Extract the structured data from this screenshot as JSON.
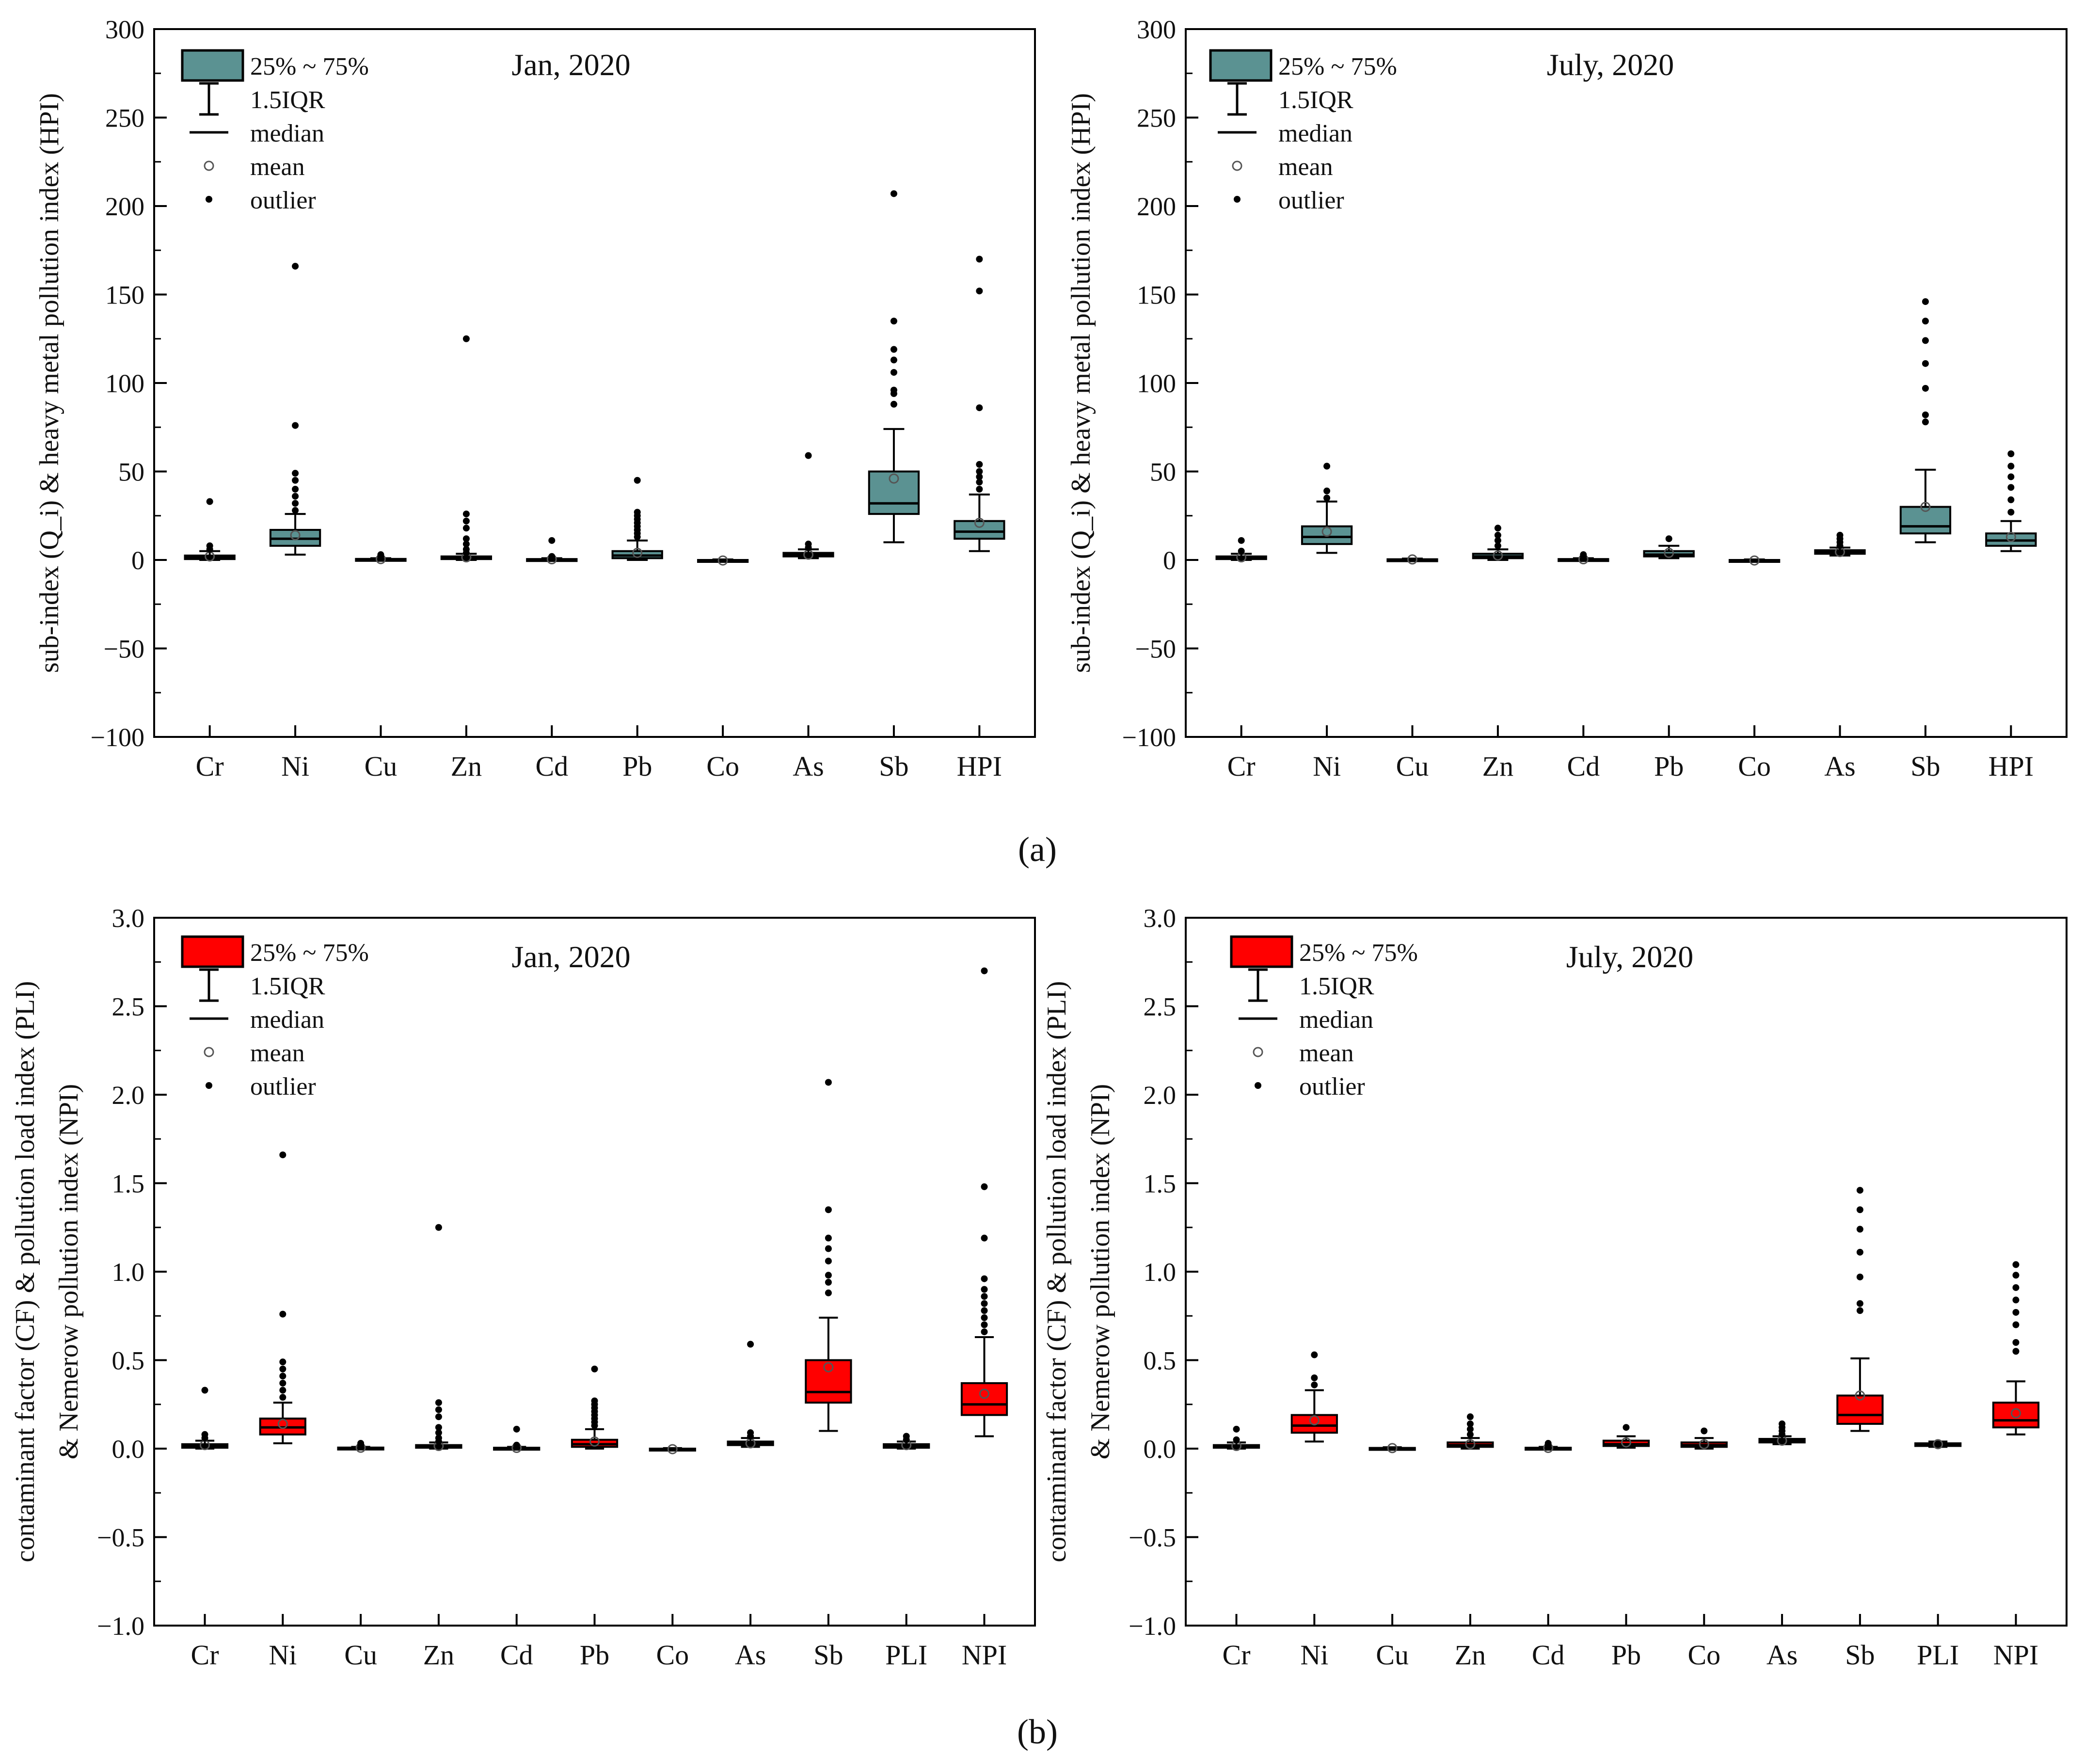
{
  "figure": {
    "panel_labels": [
      "(a)",
      "(b)"
    ]
  },
  "styles": {
    "teal": "#5b9292",
    "red": "#ff0000",
    "axis": "#000000"
  },
  "chart_data": [
    {
      "type": "box",
      "title": "Jan, 2020",
      "ylabel": "sub-index (Q_i) & heavy metal pollution index (HPI)",
      "ylim": [
        -100,
        300
      ],
      "yticks": [
        -100,
        -50,
        0,
        50,
        100,
        150,
        200,
        250,
        300
      ],
      "ytick_labels": [
        "−100",
        "−50",
        "0",
        "50",
        "100",
        "150",
        "200",
        "250",
        "300"
      ],
      "categories": [
        "Cr",
        "Ni",
        "Cu",
        "Zn",
        "Cd",
        "Pb",
        "Co",
        "As",
        "Sb",
        "HPI"
      ],
      "legend": [
        "25% ~ 75%",
        "1.5IQR",
        "median",
        "mean",
        "outlier"
      ],
      "box_color_key": "teal",
      "boxes": [
        {
          "q1": 0.5,
          "median": 1.5,
          "q3": 2.5,
          "wlo": 0,
          "whi": 5,
          "mean": 2,
          "outliers": [
            6,
            8,
            33
          ]
        },
        {
          "q1": 8,
          "median": 12,
          "q3": 17,
          "wlo": 3,
          "whi": 26,
          "mean": 14,
          "outliers": [
            28,
            32,
            36,
            40,
            45,
            49,
            76,
            166
          ]
        },
        {
          "q1": 0,
          "median": 0.3,
          "q3": 0.6,
          "wlo": 0,
          "whi": 1,
          "mean": 0.5,
          "outliers": [
            2,
            3
          ]
        },
        {
          "q1": 0.5,
          "median": 1,
          "q3": 2,
          "wlo": 0,
          "whi": 3.5,
          "mean": 1.5,
          "outliers": [
            4,
            6,
            9,
            12,
            18,
            22,
            26,
            125
          ]
        },
        {
          "q1": 0,
          "median": 0.3,
          "q3": 0.5,
          "wlo": 0,
          "whi": 1,
          "mean": 0.4,
          "outliers": [
            2,
            11
          ]
        },
        {
          "q1": 1,
          "median": 2.5,
          "q3": 5,
          "wlo": 0,
          "whi": 11,
          "mean": 4,
          "outliers": [
            13,
            15,
            17,
            19,
            21,
            23,
            25,
            27,
            45
          ]
        },
        {
          "q1": -0.5,
          "median": -0.2,
          "q3": 0,
          "wlo": -0.8,
          "whi": 0.3,
          "mean": -0.3,
          "outliers": []
        },
        {
          "q1": 2,
          "median": 3,
          "q3": 4,
          "wlo": 1,
          "whi": 6,
          "mean": 3,
          "outliers": [
            7,
            9,
            59
          ]
        },
        {
          "q1": 26,
          "median": 32,
          "q3": 50,
          "wlo": 10,
          "whi": 74,
          "mean": 46,
          "outliers": [
            88,
            94,
            96,
            106,
            113,
            119,
            135,
            207
          ]
        },
        {
          "q1": 12,
          "median": 16,
          "q3": 22,
          "wlo": 5,
          "whi": 37,
          "mean": 21,
          "outliers": [
            40,
            44,
            47,
            50,
            54,
            86,
            152,
            170
          ]
        }
      ]
    },
    {
      "type": "box",
      "title": "July, 2020",
      "ylabel": "sub-index (Q_i) & heavy metal pollution index (HPI)",
      "ylim": [
        -100,
        300
      ],
      "yticks": [
        -100,
        -50,
        0,
        50,
        100,
        150,
        200,
        250,
        300
      ],
      "ytick_labels": [
        "−100",
        "−50",
        "0",
        "50",
        "100",
        "150",
        "200",
        "250",
        "300"
      ],
      "categories": [
        "Cr",
        "Ni",
        "Cu",
        "Zn",
        "Cd",
        "Pb",
        "Co",
        "As",
        "Sb",
        "HPI"
      ],
      "legend": [
        "25% ~ 75%",
        "1.5IQR",
        "median",
        "mean",
        "outlier"
      ],
      "box_color_key": "teal",
      "boxes": [
        {
          "q1": 0.5,
          "median": 1,
          "q3": 2,
          "wlo": 0,
          "whi": 3.5,
          "mean": 1.5,
          "outliers": [
            5,
            11
          ]
        },
        {
          "q1": 9,
          "median": 13,
          "q3": 19,
          "wlo": 4,
          "whi": 33,
          "mean": 16,
          "outliers": [
            35,
            39,
            53
          ]
        },
        {
          "q1": 0,
          "median": 0.2,
          "q3": 0.4,
          "wlo": 0,
          "whi": 0.8,
          "mean": 0.3,
          "outliers": []
        },
        {
          "q1": 1,
          "median": 2,
          "q3": 3.5,
          "wlo": 0,
          "whi": 6,
          "mean": 2.5,
          "outliers": [
            8,
            11,
            14,
            18
          ]
        },
        {
          "q1": 0,
          "median": 0.3,
          "q3": 0.5,
          "wlo": 0,
          "whi": 1,
          "mean": 0.4,
          "outliers": [
            2,
            3
          ]
        },
        {
          "q1": 2,
          "median": 3,
          "q3": 5,
          "wlo": 1,
          "whi": 8,
          "mean": 4,
          "outliers": [
            12
          ]
        },
        {
          "q1": -0.5,
          "median": -0.2,
          "q3": 0,
          "wlo": -0.8,
          "whi": 0.3,
          "mean": -0.3,
          "outliers": []
        },
        {
          "q1": 3.5,
          "median": 4.5,
          "q3": 5.5,
          "wlo": 2.5,
          "whi": 7,
          "mean": 4.5,
          "outliers": [
            8,
            10,
            12,
            14
          ]
        },
        {
          "q1": 15,
          "median": 19,
          "q3": 30,
          "wlo": 10,
          "whi": 51,
          "mean": 30,
          "outliers": [
            78,
            82,
            97,
            111,
            124,
            135,
            146
          ]
        },
        {
          "q1": 8,
          "median": 11,
          "q3": 15,
          "wlo": 5,
          "whi": 22,
          "mean": 13,
          "outliers": [
            27,
            34,
            41,
            47,
            53,
            60
          ]
        }
      ]
    },
    {
      "type": "box",
      "title": "Jan, 2020",
      "ylabel_line1": "contaminant factor (CF) & pollution load index (PLI)",
      "ylabel_line2": "& Nemerow pollution index (NPI)",
      "ylim": [
        -1.0,
        3.0
      ],
      "yticks": [
        -1.0,
        -0.5,
        0.0,
        0.5,
        1.0,
        1.5,
        2.0,
        2.5,
        3.0
      ],
      "ytick_labels": [
        "−1.0",
        "−0.5",
        "0.0",
        "0.5",
        "1.0",
        "1.5",
        "2.0",
        "2.5",
        "3.0"
      ],
      "categories": [
        "Cr",
        "Ni",
        "Cu",
        "Zn",
        "Cd",
        "Pb",
        "Co",
        "As",
        "Sb",
        "PLI",
        "NPI"
      ],
      "legend": [
        "25% ~ 75%",
        "1.5IQR",
        "median",
        "mean",
        "outlier"
      ],
      "box_color_key": "red",
      "boxes": [
        {
          "q1": 0.005,
          "median": 0.015,
          "q3": 0.025,
          "wlo": 0,
          "whi": 0.045,
          "mean": 0.02,
          "outliers": [
            0.06,
            0.08,
            0.33
          ]
        },
        {
          "q1": 0.08,
          "median": 0.12,
          "q3": 0.17,
          "wlo": 0.03,
          "whi": 0.26,
          "mean": 0.14,
          "outliers": [
            0.29,
            0.33,
            0.37,
            0.41,
            0.45,
            0.49,
            0.76,
            1.66
          ]
        },
        {
          "q1": 0,
          "median": 0.003,
          "q3": 0.006,
          "wlo": 0,
          "whi": 0.01,
          "mean": 0.005,
          "outliers": [
            0.02,
            0.03
          ]
        },
        {
          "q1": 0.005,
          "median": 0.01,
          "q3": 0.02,
          "wlo": 0,
          "whi": 0.035,
          "mean": 0.015,
          "outliers": [
            0.04,
            0.06,
            0.09,
            0.12,
            0.18,
            0.22,
            0.26,
            1.25
          ]
        },
        {
          "q1": 0,
          "median": 0.003,
          "q3": 0.005,
          "wlo": 0,
          "whi": 0.01,
          "mean": 0.004,
          "outliers": [
            0.02,
            0.11
          ]
        },
        {
          "q1": 0.01,
          "median": 0.025,
          "q3": 0.05,
          "wlo": 0,
          "whi": 0.11,
          "mean": 0.04,
          "outliers": [
            0.13,
            0.15,
            0.17,
            0.19,
            0.21,
            0.23,
            0.25,
            0.27,
            0.45
          ]
        },
        {
          "q1": -0.005,
          "median": -0.002,
          "q3": 0,
          "wlo": -0.008,
          "whi": 0.003,
          "mean": -0.003,
          "outliers": []
        },
        {
          "q1": 0.02,
          "median": 0.03,
          "q3": 0.04,
          "wlo": 0.01,
          "whi": 0.06,
          "mean": 0.03,
          "outliers": [
            0.07,
            0.09,
            0.59
          ]
        },
        {
          "q1": 0.26,
          "median": 0.32,
          "q3": 0.5,
          "wlo": 0.1,
          "whi": 0.74,
          "mean": 0.46,
          "outliers": [
            0.88,
            0.94,
            0.98,
            1.06,
            1.13,
            1.19,
            1.35,
            2.07
          ]
        },
        {
          "q1": 0.005,
          "median": 0.015,
          "q3": 0.025,
          "wlo": 0,
          "whi": 0.04,
          "mean": 0.02,
          "outliers": [
            0.05,
            0.07
          ]
        },
        {
          "q1": 0.19,
          "median": 0.25,
          "q3": 0.37,
          "wlo": 0.07,
          "whi": 0.63,
          "mean": 0.31,
          "outliers": [
            0.66,
            0.7,
            0.74,
            0.78,
            0.82,
            0.86,
            0.9,
            0.96,
            1.19,
            1.48,
            2.7
          ]
        }
      ]
    },
    {
      "type": "box",
      "title": "July, 2020",
      "ylabel_line1": "contaminant factor (CF) & pollution load index (PLI)",
      "ylabel_line2": "& Nemerow pollution index (NPI)",
      "ylim": [
        -1.0,
        3.0
      ],
      "yticks": [
        -1.0,
        -0.5,
        0.0,
        0.5,
        1.0,
        1.5,
        2.0,
        2.5,
        3.0
      ],
      "ytick_labels": [
        "−1.0",
        "−0.5",
        "0.0",
        "0.5",
        "1.0",
        "1.5",
        "2.0",
        "2.5",
        "3.0"
      ],
      "categories": [
        "Cr",
        "Ni",
        "Cu",
        "Zn",
        "Cd",
        "Pb",
        "Co",
        "As",
        "Sb",
        "PLI",
        "NPI"
      ],
      "legend": [
        "25% ~ 75%",
        "1.5IQR",
        "median",
        "mean",
        "outlier"
      ],
      "box_color_key": "red",
      "boxes": [
        {
          "q1": 0.005,
          "median": 0.01,
          "q3": 0.02,
          "wlo": 0,
          "whi": 0.035,
          "mean": 0.015,
          "outliers": [
            0.05,
            0.11
          ]
        },
        {
          "q1": 0.09,
          "median": 0.13,
          "q3": 0.19,
          "wlo": 0.04,
          "whi": 0.33,
          "mean": 0.16,
          "outliers": [
            0.36,
            0.4,
            0.53
          ]
        },
        {
          "q1": 0,
          "median": 0.002,
          "q3": 0.004,
          "wlo": 0,
          "whi": 0.008,
          "mean": 0.003,
          "outliers": []
        },
        {
          "q1": 0.01,
          "median": 0.02,
          "q3": 0.035,
          "wlo": 0,
          "whi": 0.06,
          "mean": 0.025,
          "outliers": [
            0.08,
            0.11,
            0.14,
            0.18
          ]
        },
        {
          "q1": 0,
          "median": 0.003,
          "q3": 0.005,
          "wlo": 0,
          "whi": 0.01,
          "mean": 0.004,
          "outliers": [
            0.02,
            0.03
          ]
        },
        {
          "q1": 0.015,
          "median": 0.025,
          "q3": 0.045,
          "wlo": 0.005,
          "whi": 0.07,
          "mean": 0.035,
          "outliers": [
            0.12
          ]
        },
        {
          "q1": 0.01,
          "median": 0.02,
          "q3": 0.035,
          "wlo": 0,
          "whi": 0.06,
          "mean": 0.025,
          "outliers": [
            0.1
          ]
        },
        {
          "q1": 0.035,
          "median": 0.045,
          "q3": 0.055,
          "wlo": 0.025,
          "whi": 0.07,
          "mean": 0.045,
          "outliers": [
            0.08,
            0.1,
            0.12,
            0.14
          ]
        },
        {
          "q1": 0.14,
          "median": 0.19,
          "q3": 0.3,
          "wlo": 0.1,
          "whi": 0.51,
          "mean": 0.3,
          "outliers": [
            0.78,
            0.82,
            0.97,
            1.11,
            1.24,
            1.35,
            1.46
          ]
        },
        {
          "q1": 0.015,
          "median": 0.02,
          "q3": 0.03,
          "wlo": 0.01,
          "whi": 0.04,
          "mean": 0.025,
          "outliers": []
        },
        {
          "q1": 0.12,
          "median": 0.16,
          "q3": 0.26,
          "wlo": 0.08,
          "whi": 0.38,
          "mean": 0.2,
          "outliers": [
            0.55,
            0.6,
            0.7,
            0.77,
            0.84,
            0.91,
            0.98,
            1.04
          ]
        }
      ]
    }
  ]
}
